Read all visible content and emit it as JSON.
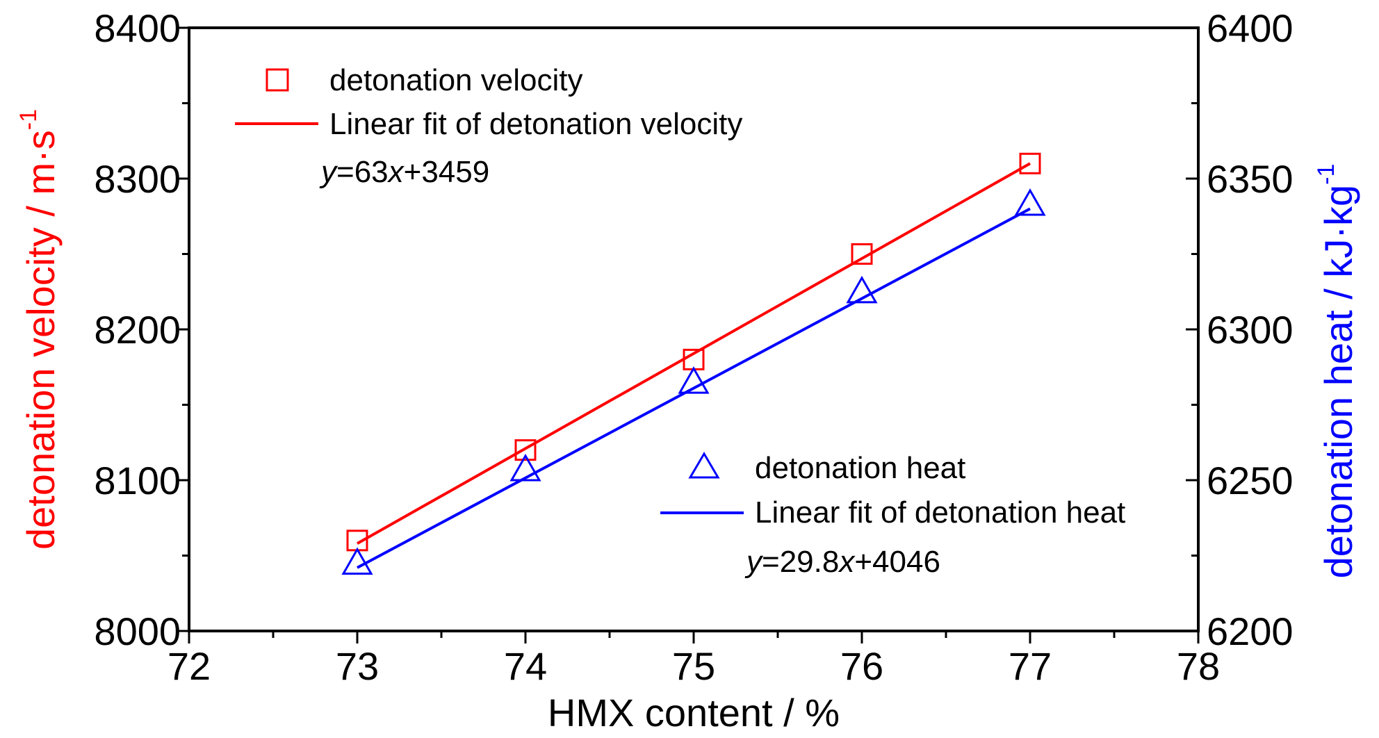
{
  "chart_data": {
    "type": "scatter",
    "xlabel": "HMX content / %",
    "xlim": [
      72,
      78
    ],
    "x_ticks": [
      "72",
      "73",
      "74",
      "75",
      "76",
      "77",
      "78"
    ],
    "y_left": {
      "label_main": "detonation velocity / m·s",
      "label_sup": "-1",
      "color": "#ff0000",
      "lim": [
        8000,
        8400
      ],
      "ticks": [
        "8000",
        "8100",
        "8200",
        "8300",
        "8400"
      ]
    },
    "y_right": {
      "label_main": "detonation heat / kJ·kg",
      "label_sup": "-1",
      "color": "#0000ff",
      "lim": [
        6200,
        6400
      ],
      "ticks": [
        "6200",
        "6250",
        "6300",
        "6350",
        "6400"
      ]
    },
    "series": [
      {
        "name": "detonation velocity",
        "axis": "left",
        "marker": "square",
        "color": "#ff0000",
        "x": [
          73,
          74,
          75,
          76,
          77
        ],
        "y": [
          8060,
          8120,
          8180,
          8250,
          8310
        ]
      },
      {
        "name": "detonation heat",
        "axis": "right",
        "marker": "triangle",
        "color": "#0000ff",
        "x": [
          73,
          74,
          75,
          76,
          77
        ],
        "y": [
          6222,
          6253,
          6282,
          6312,
          6341
        ]
      }
    ],
    "fits": [
      {
        "name": "Linear fit of detonation velocity",
        "axis": "left",
        "color": "#ff0000",
        "x": [
          73,
          77
        ],
        "y": [
          8058,
          8310
        ],
        "eq_y": "y",
        "eq_mid": "=63",
        "eq_x": "x",
        "eq_tail": "+3459"
      },
      {
        "name": "Linear fit of detonation heat",
        "axis": "right",
        "color": "#0000ff",
        "x": [
          73,
          77
        ],
        "y": [
          6221,
          6340
        ],
        "eq_y": "y",
        "eq_mid": "=29.8",
        "eq_x": "x",
        "eq_tail": "+4046"
      }
    ],
    "legend": [
      {
        "label": "detonation velocity",
        "kind": "square",
        "color": "#ff0000"
      },
      {
        "label": "Linear fit of detonation velocity",
        "kind": "line",
        "color": "#ff0000"
      },
      {
        "label": "detonation heat",
        "kind": "triangle",
        "color": "#0000ff"
      },
      {
        "label": "Linear fit of detonation heat",
        "kind": "line",
        "color": "#0000ff"
      }
    ]
  }
}
